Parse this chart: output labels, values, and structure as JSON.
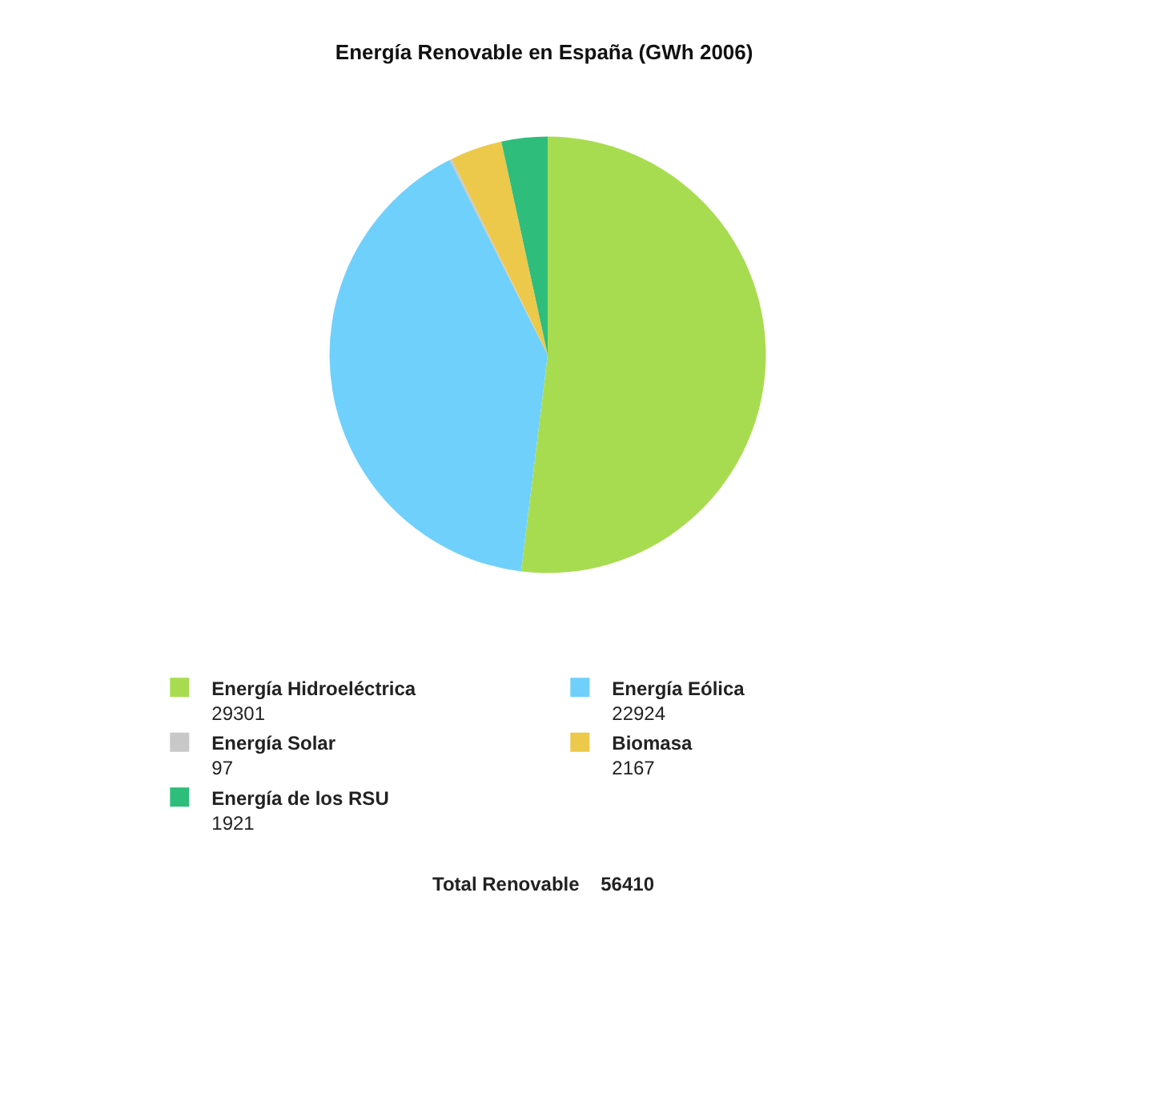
{
  "chart_data": {
    "type": "pie",
    "title": "Energía Renovable en España (GWh 2006)",
    "categories": [
      "Energía Hidroeléctrica",
      "Energía Eólica",
      "Energía Solar",
      "Biomasa",
      "Energía de los RSU"
    ],
    "values": [
      29301,
      22924,
      97,
      2167,
      1921
    ],
    "colors": [
      "#a8dc50",
      "#6fd0fb",
      "#c8c8c8",
      "#ecc94a",
      "#2ebd7b"
    ],
    "data_labels": true,
    "legend": "bottom",
    "annotations": [
      "Total Renovable    56410"
    ]
  }
}
